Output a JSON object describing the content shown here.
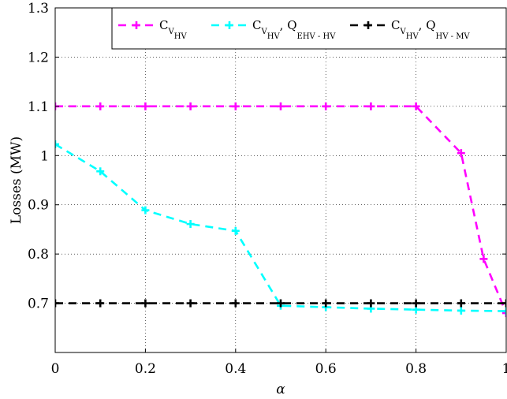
{
  "chart_data": {
    "type": "line",
    "title": "",
    "xlabel": "α",
    "ylabel": "Losses (MW)",
    "xlim": [
      0,
      1
    ],
    "ylim": [
      0.6,
      1.3
    ],
    "xticks": [
      0,
      0.2,
      0.4,
      0.6,
      0.8,
      1
    ],
    "xtick_labels": [
      "0",
      "0.2",
      "0.4",
      "0.6",
      "0.8",
      "1"
    ],
    "yticks": [
      0.7,
      0.8,
      0.9,
      1.0,
      1.1,
      1.2,
      1.3
    ],
    "ytick_labels": [
      "0.7",
      "0.8",
      "0.9",
      "1",
      "1.1",
      "1.2",
      "1.3"
    ],
    "grid": true,
    "legend_position": "top-right",
    "series": [
      {
        "legend": {
          "main": "C",
          "sub1": "V",
          "sub2": "HV",
          "after": "",
          "sub3": "",
          "sub4": ""
        },
        "color": "#ff00ff",
        "x": [
          0,
          0.1,
          0.2,
          0.3,
          0.4,
          0.5,
          0.6,
          0.7,
          0.8,
          0.9,
          0.95,
          1.0
        ],
        "y": [
          1.1,
          1.1,
          1.1,
          1.1,
          1.1,
          1.1,
          1.1,
          1.1,
          1.1,
          1.005,
          0.79,
          0.68
        ]
      },
      {
        "legend": {
          "main": "C",
          "sub1": "V",
          "sub2": "HV",
          "after": ", Q",
          "sub3": "EHV - HV",
          "sub4": ""
        },
        "color": "#00ffff",
        "x": [
          0,
          0.1,
          0.2,
          0.3,
          0.4,
          0.5,
          0.6,
          0.7,
          0.8,
          0.9,
          1.0
        ],
        "y": [
          1.023,
          0.968,
          0.889,
          0.861,
          0.847,
          0.695,
          0.692,
          0.689,
          0.687,
          0.685,
          0.684
        ]
      },
      {
        "legend": {
          "main": "C",
          "sub1": "V",
          "sub2": "HV",
          "after": ", Q",
          "sub3": "HV - MV",
          "sub4": ""
        },
        "color": "#000000",
        "x": [
          0,
          0.1,
          0.2,
          0.3,
          0.4,
          0.5,
          0.6,
          0.7,
          0.8,
          0.9,
          1.0
        ],
        "y": [
          0.7,
          0.7,
          0.7,
          0.7,
          0.7,
          0.7,
          0.7,
          0.7,
          0.7,
          0.7,
          0.7
        ]
      }
    ]
  }
}
